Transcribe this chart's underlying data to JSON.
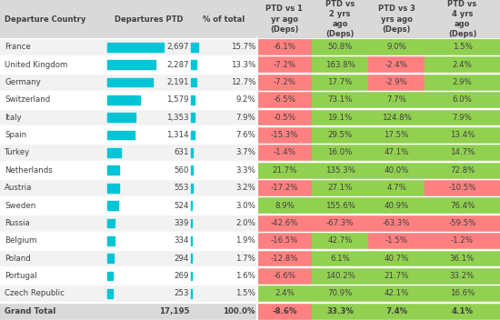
{
  "headers": [
    "Departure Country",
    "Departures PTD",
    "% of total",
    "PTD vs 1\nyr ago\n(Deps)",
    "PTD vs\n2 yrs\nago\n(Deps)",
    "PTD vs 3\nyrs ago\n(Deps)",
    "PTD vs\n4 yrs\nago\n(Deps)"
  ],
  "rows": [
    [
      "France",
      2697,
      15.7,
      -6.1,
      50.8,
      9.0,
      1.5
    ],
    [
      "United Kingdom",
      2287,
      13.3,
      -7.2,
      163.8,
      -2.4,
      2.4
    ],
    [
      "Germany",
      2191,
      12.7,
      -7.2,
      17.7,
      -2.9,
      2.9
    ],
    [
      "Switzerland",
      1579,
      9.2,
      -6.5,
      73.1,
      7.7,
      6.0
    ],
    [
      "Italy",
      1353,
      7.9,
      -0.5,
      19.1,
      124.8,
      7.9
    ],
    [
      "Spain",
      1314,
      7.6,
      -15.3,
      29.5,
      17.5,
      13.4
    ],
    [
      "Turkey",
      631,
      3.7,
      -1.4,
      16.0,
      47.1,
      14.7
    ],
    [
      "Netherlands",
      560,
      3.3,
      21.7,
      135.3,
      40.0,
      72.8
    ],
    [
      "Austria",
      553,
      3.2,
      -17.2,
      27.1,
      4.7,
      -10.5
    ],
    [
      "Sweden",
      524,
      3.0,
      8.9,
      155.6,
      40.9,
      76.4
    ],
    [
      "Russia",
      339,
      2.0,
      -42.6,
      -67.3,
      -63.3,
      -59.5
    ],
    [
      "Belgium",
      334,
      1.9,
      -16.5,
      42.7,
      -1.5,
      -1.2
    ],
    [
      "Poland",
      294,
      1.7,
      -12.8,
      6.1,
      40.7,
      36.1
    ],
    [
      "Portugal",
      269,
      1.6,
      -6.6,
      140.2,
      21.7,
      33.2
    ],
    [
      "Czech Republic",
      253,
      1.5,
      2.4,
      70.9,
      42.1,
      16.6
    ],
    [
      "Grand Total",
      17195,
      100.0,
      -8.6,
      33.3,
      7.4,
      4.1
    ]
  ],
  "max_departures": 2697,
  "bar_color": "#00c5d7",
  "header_bg": "#d9d9d9",
  "row_bg_light": "#f2f2f2",
  "row_bg_white": "#ffffff",
  "grand_total_bg": "#d9d9d9",
  "positive_color": "#92d050",
  "negative_color": "#ff8080",
  "text_color": "#404040",
  "header_fontsize": 6.0,
  "cell_fontsize": 6.2
}
